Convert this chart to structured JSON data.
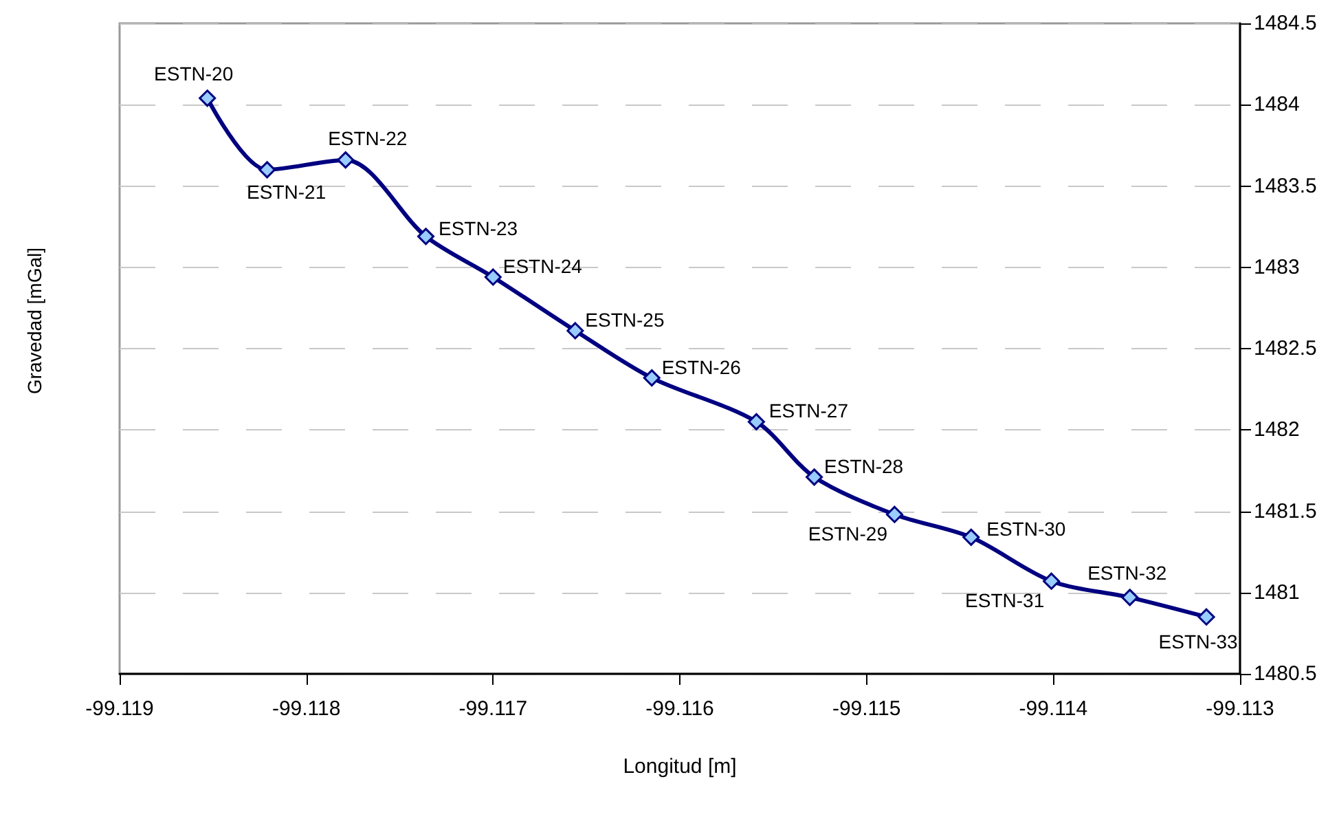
{
  "chart_data": {
    "type": "line",
    "xlabel": "Longitud [m]",
    "ylabel": "Gravedad [mGal]",
    "x": [
      -99.11853,
      -99.11821,
      -99.11779,
      -99.11736,
      -99.117,
      -99.11656,
      -99.11615,
      -99.11559,
      -99.11528,
      -99.11485,
      -99.11444,
      -99.11401,
      -99.11359,
      -99.11318
    ],
    "series": [
      {
        "color": "#000080",
        "values": [
          1484.04,
          1483.6,
          1483.66,
          1483.19,
          1482.94,
          1482.61,
          1482.32,
          1482.05,
          1481.71,
          1481.48,
          1481.34,
          1481.07,
          1480.97,
          1480.85
        ]
      }
    ],
    "xlim": [
      -99.119,
      -99.113
    ],
    "xticks": [
      -99.119,
      -99.118,
      -99.117,
      -99.116,
      -99.115,
      -99.114,
      -99.113
    ],
    "ylim": [
      1480.5,
      1484.5
    ],
    "yticks": [
      1480.5,
      1481,
      1481.5,
      1482,
      1482.5,
      1483,
      1483.5,
      1484,
      1484.5
    ],
    "grid": "y",
    "marker": "diamond",
    "line_style": "solid",
    "annotations": [
      {
        "text": "ESTN-20",
        "x": -99.11853,
        "y": 1484.04
      },
      {
        "text": "ESTN-21",
        "x": -99.11821,
        "y": 1483.6
      },
      {
        "text": "ESTN-22",
        "x": -99.11779,
        "y": 1483.66
      },
      {
        "text": "ESTN-23",
        "x": -99.11736,
        "y": 1483.19
      },
      {
        "text": "ESTN-24",
        "x": -99.117,
        "y": 1482.94
      },
      {
        "text": "ESTN-25",
        "x": -99.11656,
        "y": 1482.61
      },
      {
        "text": "ESTN-26",
        "x": -99.11615,
        "y": 1482.32
      },
      {
        "text": "ESTN-27",
        "x": -99.11559,
        "y": 1482.05
      },
      {
        "text": "ESTN-28",
        "x": -99.11528,
        "y": 1481.71
      },
      {
        "text": "ESTN-29",
        "x": -99.11485,
        "y": 1481.48
      },
      {
        "text": "ESTN-30",
        "x": -99.11444,
        "y": 1481.34
      },
      {
        "text": "ESTN-31",
        "x": -99.11401,
        "y": 1481.07
      },
      {
        "text": "ESTN-32",
        "x": -99.11359,
        "y": 1480.97
      },
      {
        "text": "ESTN-33",
        "x": -99.11318,
        "y": 1480.85
      }
    ]
  }
}
